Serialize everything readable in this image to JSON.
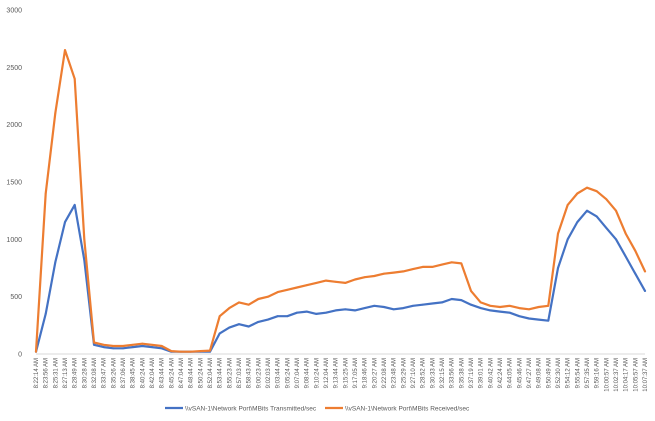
{
  "chart_data": {
    "type": "line",
    "title": "",
    "xlabel": "",
    "ylabel": "",
    "ylim": [
      0,
      3000
    ],
    "yticks": [
      "0",
      "500",
      "1000",
      "1500",
      "2000",
      "2500",
      "3000"
    ],
    "grid": false,
    "legend_position": "bottom",
    "x_tick_labels": [
      "8:22:14 AM",
      "8:23:56 AM",
      "8:25:31 AM",
      "8:27:13 AM",
      "8:28:49 AM",
      "8:30:28 AM",
      "8:32:08 AM",
      "8:33:47 AM",
      "8:35:26 AM",
      "8:37:06 AM",
      "8:38:45 AM",
      "8:40:24 AM",
      "8:42:04 AM",
      "8:43:44 AM",
      "8:45:24 AM",
      "8:47:04 AM",
      "8:48:44 AM",
      "8:50:24 AM",
      "8:52:04 AM",
      "8:53:44 AM",
      "8:55:23 AM",
      "8:57:03 AM",
      "8:58:43 AM",
      "9:00:23 AM",
      "9:02:03 AM",
      "9:03:44 AM",
      "9:05:24 AM",
      "9:07:04 AM",
      "9:08:44 AM",
      "9:10:24 AM",
      "9:12:04 AM",
      "9:13:44 AM",
      "9:15:25 AM",
      "9:17:05 AM",
      "9:18:46 AM",
      "9:20:27 AM",
      "9:22:08 AM",
      "9:23:48 AM",
      "9:25:29 AM",
      "9:27:10 AM",
      "9:28:52 AM",
      "9:30:33 AM",
      "9:32:15 AM",
      "9:33:56 AM",
      "9:35:38 AM",
      "9:37:19 AM",
      "9:39:01 AM",
      "9:40:42 AM",
      "9:42:24 AM",
      "9:44:05 AM",
      "9:45:46 AM",
      "9:47:27 AM",
      "9:49:08 AM",
      "9:50:49 AM",
      "9:52:30 AM",
      "9:54:12 AM",
      "9:55:54 AM",
      "9:57:35 AM",
      "9:59:16 AM",
      "10:00:57 AM",
      "10:02:37 AM",
      "10:04:17 AM",
      "10:05:57 AM",
      "10:07:37 AM"
    ],
    "series": [
      {
        "name": "\\\\vSAN-1\\Network Port\\MBits Transmitted/sec",
        "color": "#4472C4",
        "values": [
          20,
          350,
          800,
          1150,
          1300,
          820,
          80,
          60,
          50,
          50,
          60,
          70,
          60,
          50,
          20,
          20,
          20,
          20,
          20,
          180,
          230,
          260,
          240,
          280,
          300,
          330,
          330,
          360,
          370,
          350,
          360,
          380,
          390,
          380,
          400,
          420,
          410,
          390,
          400,
          420,
          430,
          440,
          450,
          480,
          470,
          430,
          400,
          380,
          370,
          360,
          330,
          310,
          300,
          290,
          750,
          1000,
          1150,
          1250,
          1200,
          1100,
          1000,
          850,
          700,
          550
        ]
      },
      {
        "name": "\\\\vSAN-1\\Network Port\\MBits Received/sec",
        "color": "#ED7D31",
        "values": [
          20,
          1400,
          2100,
          2650,
          2400,
          1000,
          100,
          80,
          70,
          70,
          80,
          90,
          80,
          70,
          25,
          20,
          20,
          25,
          30,
          330,
          400,
          450,
          430,
          480,
          500,
          540,
          560,
          580,
          600,
          620,
          640,
          630,
          620,
          650,
          670,
          680,
          700,
          710,
          720,
          740,
          760,
          760,
          780,
          800,
          790,
          550,
          450,
          420,
          410,
          420,
          400,
          390,
          410,
          420,
          1050,
          1300,
          1400,
          1450,
          1420,
          1350,
          1250,
          1050,
          900,
          720
        ]
      }
    ]
  }
}
